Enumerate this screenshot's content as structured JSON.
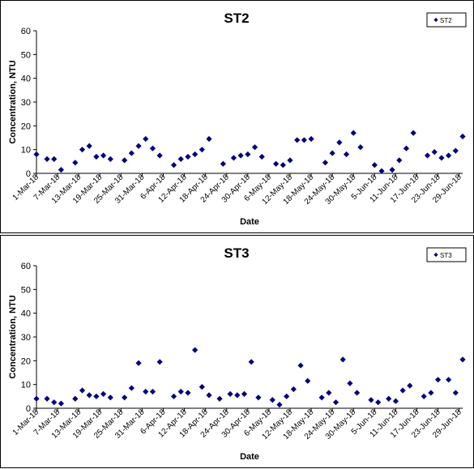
{
  "chart_data": [
    {
      "type": "scatter",
      "title": "ST2",
      "xlabel": "Date",
      "ylabel": "Concentration, NTU",
      "ylim": [
        0,
        60
      ],
      "yticks": [
        0,
        10,
        20,
        30,
        40,
        50,
        60
      ],
      "x_range": [
        "1-Mar-18",
        "30-Jun-18"
      ],
      "xtick_labels": [
        "1-Mar-18",
        "7-Mar-18",
        "13-Mar-18",
        "19-Mar-18",
        "25-Mar-18",
        "31-Mar-18",
        "6-Apr-18",
        "12-Apr-18",
        "18-Apr-18",
        "24-Apr-18",
        "30-Apr-18",
        "6-May-18",
        "12-May-18",
        "18-May-18",
        "24-May-18",
        "30-May-18",
        "5-Jun-18",
        "11-Jun-18",
        "17-Jun-18",
        "23-Jun-18",
        "29-Jun-18"
      ],
      "grid": false,
      "legend_position": "top-right",
      "marker_color": "#000080",
      "series": [
        {
          "name": "ST2",
          "points": [
            {
              "x": "1-Mar-18",
              "y": 8
            },
            {
              "x": "4-Mar-18",
              "y": 6
            },
            {
              "x": "6-Mar-18",
              "y": 6
            },
            {
              "x": "8-Mar-18",
              "y": 1.5
            },
            {
              "x": "12-Mar-18",
              "y": 4.5
            },
            {
              "x": "14-Mar-18",
              "y": 10
            },
            {
              "x": "16-Mar-18",
              "y": 11.5
            },
            {
              "x": "18-Mar-18",
              "y": 7
            },
            {
              "x": "20-Mar-18",
              "y": 7.5
            },
            {
              "x": "22-Mar-18",
              "y": 6
            },
            {
              "x": "26-Mar-18",
              "y": 5.5
            },
            {
              "x": "28-Mar-18",
              "y": 8.5
            },
            {
              "x": "30-Mar-18",
              "y": 11.5
            },
            {
              "x": "1-Apr-18",
              "y": 14.5
            },
            {
              "x": "3-Apr-18",
              "y": 10.5
            },
            {
              "x": "5-Apr-18",
              "y": 7.5
            },
            {
              "x": "9-Apr-18",
              "y": 3.5
            },
            {
              "x": "11-Apr-18",
              "y": 6
            },
            {
              "x": "13-Apr-18",
              "y": 7
            },
            {
              "x": "15-Apr-18",
              "y": 8
            },
            {
              "x": "17-Apr-18",
              "y": 10
            },
            {
              "x": "19-Apr-18",
              "y": 14.5
            },
            {
              "x": "23-Apr-18",
              "y": 4
            },
            {
              "x": "26-Apr-18",
              "y": 6.5
            },
            {
              "x": "28-Apr-18",
              "y": 7.5
            },
            {
              "x": "30-Apr-18",
              "y": 8
            },
            {
              "x": "2-May-18",
              "y": 11
            },
            {
              "x": "4-May-18",
              "y": 7
            },
            {
              "x": "8-May-18",
              "y": 4
            },
            {
              "x": "10-May-18",
              "y": 3.5
            },
            {
              "x": "12-May-18",
              "y": 5.5
            },
            {
              "x": "14-May-18",
              "y": 14
            },
            {
              "x": "16-May-18",
              "y": 14
            },
            {
              "x": "18-May-18",
              "y": 14.5
            },
            {
              "x": "22-May-18",
              "y": 4.5
            },
            {
              "x": "24-May-18",
              "y": 8.5
            },
            {
              "x": "26-May-18",
              "y": 13
            },
            {
              "x": "28-May-18",
              "y": 8
            },
            {
              "x": "30-May-18",
              "y": 17
            },
            {
              "x": "1-Jun-18",
              "y": 11
            },
            {
              "x": "5-Jun-18",
              "y": 3.5
            },
            {
              "x": "7-Jun-18",
              "y": 1
            },
            {
              "x": "10-Jun-18",
              "y": 1.5
            },
            {
              "x": "12-Jun-18",
              "y": 5.5
            },
            {
              "x": "14-Jun-18",
              "y": 10.5
            },
            {
              "x": "16-Jun-18",
              "y": 17
            },
            {
              "x": "20-Jun-18",
              "y": 7.5
            },
            {
              "x": "22-Jun-18",
              "y": 9
            },
            {
              "x": "24-Jun-18",
              "y": 6.5
            },
            {
              "x": "26-Jun-18",
              "y": 7.5
            },
            {
              "x": "28-Jun-18",
              "y": 9.5
            },
            {
              "x": "30-Jun-18",
              "y": 15.5
            }
          ]
        }
      ]
    },
    {
      "type": "scatter",
      "title": "ST3",
      "xlabel": "Date",
      "ylabel": "Concentration, NTU",
      "ylim": [
        0,
        60
      ],
      "yticks": [
        0,
        10,
        20,
        30,
        40,
        50,
        60
      ],
      "x_range": [
        "1-Mar-18",
        "30-Jun-18"
      ],
      "xtick_labels": [
        "1-Mar-18",
        "7-Mar-18",
        "13-Mar-18",
        "19-Mar-18",
        "25-Mar-18",
        "31-Mar-18",
        "6-Apr-18",
        "12-Apr-18",
        "18-Apr-18",
        "24-Apr-18",
        "30-Apr-18",
        "6-May-18",
        "12-May-18",
        "18-May-18",
        "24-May-18",
        "30-May-18",
        "5-Jun-18",
        "11-Jun-18",
        "17-Jun-18",
        "23-Jun-18",
        "29-Jun-18"
      ],
      "grid": false,
      "legend_position": "top-right",
      "marker_color": "#000080",
      "series": [
        {
          "name": "ST3",
          "points": [
            {
              "x": "1-Mar-18",
              "y": 4
            },
            {
              "x": "4-Mar-18",
              "y": 4
            },
            {
              "x": "6-Mar-18",
              "y": 2.5
            },
            {
              "x": "8-Mar-18",
              "y": 2
            },
            {
              "x": "12-Mar-18",
              "y": 4
            },
            {
              "x": "14-Mar-18",
              "y": 7.5
            },
            {
              "x": "16-Mar-18",
              "y": 5.5
            },
            {
              "x": "18-Mar-18",
              "y": 5
            },
            {
              "x": "20-Mar-18",
              "y": 6
            },
            {
              "x": "22-Mar-18",
              "y": 4.5
            },
            {
              "x": "26-Mar-18",
              "y": 4.5
            },
            {
              "x": "28-Mar-18",
              "y": 8.5
            },
            {
              "x": "30-Mar-18",
              "y": 19
            },
            {
              "x": "1-Apr-18",
              "y": 7
            },
            {
              "x": "3-Apr-18",
              "y": 7
            },
            {
              "x": "5-Apr-18",
              "y": 19.5
            },
            {
              "x": "9-Apr-18",
              "y": 5
            },
            {
              "x": "11-Apr-18",
              "y": 7
            },
            {
              "x": "13-Apr-18",
              "y": 6.5
            },
            {
              "x": "15-Apr-18",
              "y": 24.5
            },
            {
              "x": "17-Apr-18",
              "y": 9
            },
            {
              "x": "19-Apr-18",
              "y": 5.5
            },
            {
              "x": "22-Apr-18",
              "y": 4
            },
            {
              "x": "25-Apr-18",
              "y": 6
            },
            {
              "x": "27-Apr-18",
              "y": 5.5
            },
            {
              "x": "29-Apr-18",
              "y": 6
            },
            {
              "x": "1-May-18",
              "y": 19.5
            },
            {
              "x": "3-May-18",
              "y": 4.5
            },
            {
              "x": "7-May-18",
              "y": 3.5
            },
            {
              "x": "9-May-18",
              "y": 1.5
            },
            {
              "x": "11-May-18",
              "y": 5
            },
            {
              "x": "13-May-18",
              "y": 8
            },
            {
              "x": "15-May-18",
              "y": 18
            },
            {
              "x": "17-May-18",
              "y": 11.5
            },
            {
              "x": "21-May-18",
              "y": 4.5
            },
            {
              "x": "23-May-18",
              "y": 6.5
            },
            {
              "x": "25-May-18",
              "y": 2.5
            },
            {
              "x": "27-May-18",
              "y": 20.5
            },
            {
              "x": "29-May-18",
              "y": 10.5
            },
            {
              "x": "31-May-18",
              "y": 6.5
            },
            {
              "x": "4-Jun-18",
              "y": 3.5
            },
            {
              "x": "6-Jun-18",
              "y": 2.5
            },
            {
              "x": "9-Jun-18",
              "y": 4
            },
            {
              "x": "11-Jun-18",
              "y": 3
            },
            {
              "x": "13-Jun-18",
              "y": 7.5
            },
            {
              "x": "15-Jun-18",
              "y": 9.5
            },
            {
              "x": "19-Jun-18",
              "y": 5
            },
            {
              "x": "21-Jun-18",
              "y": 6.5
            },
            {
              "x": "23-Jun-18",
              "y": 12
            },
            {
              "x": "26-Jun-18",
              "y": 12
            },
            {
              "x": "28-Jun-18",
              "y": 6.5
            },
            {
              "x": "30-Jun-18",
              "y": 20.5
            }
          ]
        }
      ]
    }
  ]
}
